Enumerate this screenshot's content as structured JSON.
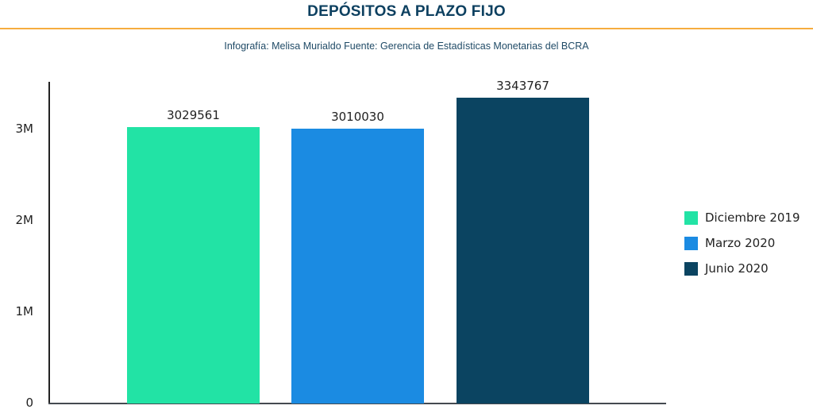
{
  "header": {
    "title": "DEPÓSITOS A PLAZO FIJO",
    "subtitle": "Infografía: Melisa Murialdo Fuente: Gerencia de Estadísticas Monetarias del BCRA",
    "divider_color": "#f6ad3f"
  },
  "chart_data": {
    "type": "bar",
    "title": "DEPÓSITOS A PLAZO FIJO",
    "subtitle": "Infografía: Melisa Murialdo Fuente: Gerencia de Estadísticas Monetarias del BCRA",
    "categories": [
      "Diciembre 2019",
      "Marzo 2020",
      "Junio 2020"
    ],
    "values": [
      3029561,
      3010030,
      3343767
    ],
    "value_labels": [
      "3029561",
      "3010030",
      "3343767"
    ],
    "colors": [
      "#22e3a5",
      "#1b8be2",
      "#0b4461"
    ],
    "xlabel": "",
    "ylabel": "",
    "ylim": [
      0,
      3500000
    ],
    "yticks": [
      0,
      1000000,
      2000000,
      3000000
    ],
    "ytick_labels": [
      "0",
      "1M",
      "2M",
      "3M"
    ],
    "grid": false,
    "legend_position": "right",
    "legend": [
      "Diciembre 2019",
      "Marzo 2020",
      "Junio 2020"
    ]
  }
}
